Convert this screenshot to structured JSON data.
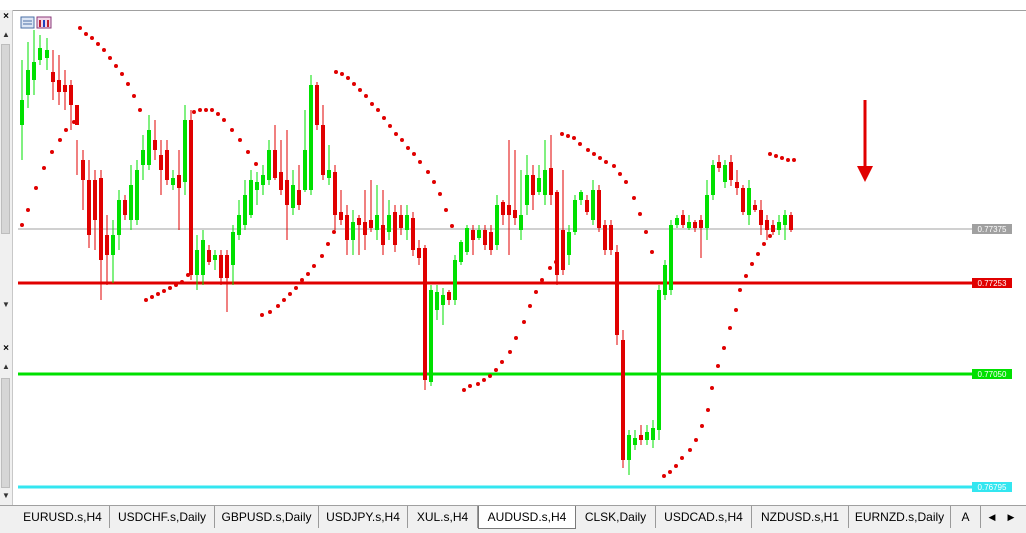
{
  "chart_data": {
    "type": "candlestick",
    "symbol": "AUDUSD.s,H4",
    "price_levels": [
      {
        "label": "0.77375",
        "color": "#a0a0a0",
        "role": "current-price"
      },
      {
        "label": "0.77253",
        "color": "#e00000",
        "role": "level"
      },
      {
        "label": "0.77050",
        "color": "#00e000",
        "role": "level"
      },
      {
        "label": "0.76795",
        "color": "#33e6f0",
        "role": "level"
      }
    ],
    "candle_colors": {
      "bull": "#00e000",
      "bear": "#e00000"
    },
    "sar_color": "#e00000",
    "arrow_direction": "down",
    "arrow_color": "#e00000"
  },
  "tabs": [
    {
      "label": "EURUSD.s,H4",
      "active": false
    },
    {
      "label": "USDCHF.s,Daily",
      "active": false
    },
    {
      "label": "GBPUSD.s,Daily",
      "active": false
    },
    {
      "label": "USDJPY.s,H4",
      "active": false
    },
    {
      "label": "XUL.s,H4",
      "active": false
    },
    {
      "label": "AUDUSD.s,H4",
      "active": true
    },
    {
      "label": "CLSK,Daily",
      "active": false
    },
    {
      "label": "USDCAD.s,H4",
      "active": false
    },
    {
      "label": "NZDUSD.s,H1",
      "active": false
    },
    {
      "label": "EURNZD.s,Daily",
      "active": false
    },
    {
      "label": "A",
      "active": false
    }
  ],
  "controls": {
    "close_glyph": "×",
    "scroll_up": "▲",
    "scroll_down": "▼",
    "tab_prev": "◀",
    "tab_next": "▶"
  }
}
